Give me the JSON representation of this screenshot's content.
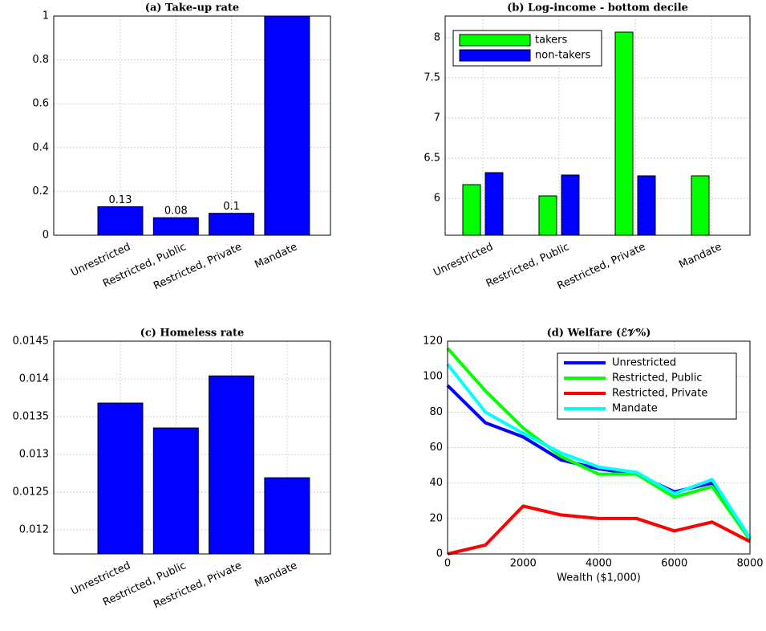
{
  "chart_data": [
    {
      "type": "bar",
      "title": "(a) Take-up rate",
      "categories": [
        "Unrestricted",
        "Restricted, Public",
        "Restricted, Private",
        "Mandate"
      ],
      "values": [
        0.13,
        0.08,
        0.1,
        1
      ],
      "value_labels": [
        "0.13",
        "0.08",
        "0.1",
        null
      ],
      "color": "#0000ff",
      "ylim": [
        0,
        1
      ],
      "yticks": [
        0,
        0.2,
        0.4,
        0.6,
        0.8,
        1
      ],
      "grid": true
    },
    {
      "type": "grouped_bar",
      "title": "(b) Log-income - bottom decile",
      "categories": [
        "Unrestricted",
        "Restricted, Public",
        "Restricted, Private",
        "Mandate"
      ],
      "series": [
        {
          "name": "takers",
          "color": "#00ff00",
          "values": [
            6.17,
            6.03,
            8.07,
            6.28
          ]
        },
        {
          "name": "non-takers",
          "color": "#0000ff",
          "values": [
            6.32,
            6.29,
            6.28,
            null
          ]
        }
      ],
      "ylim": [
        5.54,
        8.27
      ],
      "yticks": [
        6,
        6.5,
        7,
        7.5,
        8
      ],
      "grid": true,
      "legend": "upper left"
    },
    {
      "type": "bar",
      "title": "(c) Homeless rate",
      "categories": [
        "Unrestricted",
        "Restricted, Public",
        "Restricted, Private",
        "Mandate"
      ],
      "values": [
        0.01368,
        0.01335,
        0.01404,
        0.01269
      ],
      "color": "#0000ff",
      "ylim": [
        0.01168,
        0.0145
      ],
      "yticks": [
        0.012,
        0.0125,
        0.013,
        0.0135,
        0.014,
        0.0145
      ],
      "grid": true
    },
    {
      "type": "line",
      "title": "(d) Welfare (ℰ𝒱%)",
      "x_label": "Wealth ($1,000)",
      "x": [
        0,
        1000,
        2000,
        3000,
        4000,
        5000,
        6000,
        7000,
        8000
      ],
      "series": [
        {
          "name": "Unrestricted",
          "color": "#0000ff",
          "values": [
            95,
            74,
            66,
            53,
            48,
            45,
            35,
            40,
            8
          ]
        },
        {
          "name": "Restricted, Public",
          "color": "#00ff00",
          "values": [
            116,
            92,
            71,
            55,
            45,
            45,
            32,
            38,
            8
          ]
        },
        {
          "name": "Restricted, Private",
          "color": "#ff0000",
          "values": [
            0,
            5,
            27,
            22,
            20,
            20,
            13,
            18,
            7
          ]
        },
        {
          "name": "Mandate",
          "color": "#00ffff",
          "values": [
            107,
            80,
            68,
            57,
            49,
            46,
            34,
            42,
            9
          ]
        }
      ],
      "xlim": [
        0,
        8000
      ],
      "xticks": [
        0,
        2000,
        4000,
        6000,
        8000
      ],
      "ylim": [
        0,
        120
      ],
      "yticks": [
        0,
        20,
        40,
        60,
        80,
        100,
        120
      ],
      "grid": true,
      "legend": "upper right"
    }
  ]
}
